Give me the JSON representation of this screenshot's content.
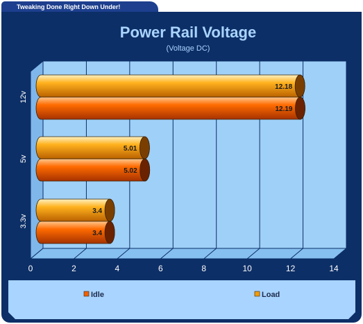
{
  "header": {
    "tab_text": "Tweaking Done Right Down Under!"
  },
  "chart_data": {
    "type": "bar",
    "orientation": "horizontal",
    "title": "Power Rail Voltage",
    "subtitle": "(Voltage DC)",
    "categories": [
      "12v",
      "5v",
      "3.3v"
    ],
    "series": [
      {
        "name": "Load",
        "color": "#f59a00",
        "values": [
          12.18,
          5.01,
          3.4
        ]
      },
      {
        "name": "Idle",
        "color": "#f06000",
        "values": [
          12.19,
          5.02,
          3.4
        ]
      }
    ],
    "xlim": [
      0,
      14
    ],
    "xticks": [
      "0",
      "2",
      "4",
      "6",
      "8",
      "10",
      "12",
      "14"
    ],
    "grid": true,
    "legend_position": "bottom",
    "legend": [
      "Idle",
      "Load"
    ],
    "colors": {
      "frame": "#0d2f67",
      "plot_bg": "#9fd0f8",
      "title": "#a9d4ff"
    }
  }
}
